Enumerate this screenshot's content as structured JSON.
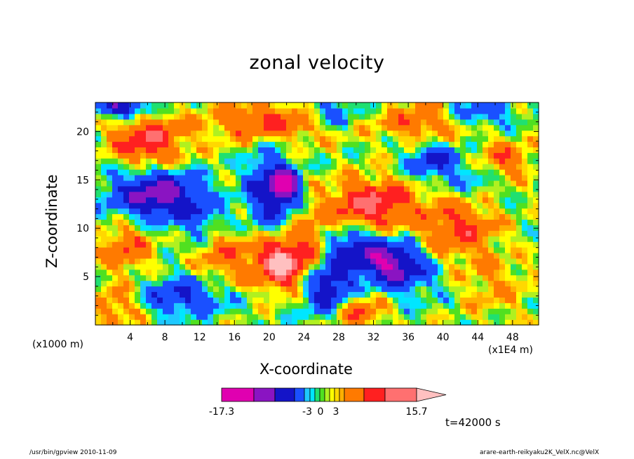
{
  "chart_data": {
    "type": "heatmap",
    "title": "zonal velocity",
    "xlabel": "X-coordinate",
    "ylabel": "Z-coordinate",
    "x_unit_left": "(x1000 m)",
    "x_unit_right": "(x1E4 m)",
    "time_label": "t=42000 s",
    "xlim": [
      0,
      51
    ],
    "ylim": [
      0,
      23
    ],
    "x_ticks": [
      "4",
      "8",
      "12",
      "16",
      "20",
      "24",
      "28",
      "32",
      "36",
      "40",
      "44",
      "48"
    ],
    "y_ticks": [
      "5",
      "10",
      "15",
      "20"
    ],
    "colorbar": {
      "labels": [
        "-17.3",
        "-3",
        "0",
        "3",
        "15.7"
      ],
      "colors": [
        "#e000b0",
        "#8a14c2",
        "#1414c8",
        "#1a50ff",
        "#1ec8ff",
        "#00e6ff",
        "#20e070",
        "#50e020",
        "#b0f020",
        "#ffff00",
        "#ffd800",
        "#ffb000",
        "#ff7a00",
        "#ff2020",
        "#ff7070",
        "#ffc0c0"
      ]
    },
    "field": {
      "min": -17.3,
      "max": 15.7,
      "features": [
        {
          "x": 21.5,
          "z": 6.5,
          "value": 14,
          "rx": 3,
          "rz": 2.5
        },
        {
          "x": 32,
          "z": 12.5,
          "value": 10,
          "rx": 5,
          "rz": 2.5
        },
        {
          "x": 6,
          "z": 19,
          "value": 9,
          "rx": 4,
          "rz": 2.5
        },
        {
          "x": 20,
          "z": 21,
          "value": 7,
          "rx": 7,
          "rz": 2
        },
        {
          "x": 42,
          "z": 10,
          "value": 7,
          "rx": 4,
          "rz": 3
        },
        {
          "x": 38,
          "z": 21,
          "value": 6,
          "rx": 5,
          "rz": 2
        },
        {
          "x": 15,
          "z": 7,
          "value": 5,
          "rx": 3,
          "rz": 3
        },
        {
          "x": 3.5,
          "z": 8,
          "value": 6,
          "rx": 3,
          "rz": 2.5
        },
        {
          "x": 2.5,
          "z": 2,
          "value": 5,
          "rx": 3,
          "rz": 2
        },
        {
          "x": 30,
          "z": 1.5,
          "value": 7,
          "rx": 3,
          "rz": 2
        },
        {
          "x": 25,
          "z": 9,
          "value": 4,
          "rx": 2,
          "rz": 3
        },
        {
          "x": 47,
          "z": 17,
          "value": 6,
          "rx": 3,
          "rz": 2
        },
        {
          "x": 46,
          "z": 4,
          "value": 3,
          "rx": 4,
          "rz": 3
        },
        {
          "x": 20,
          "z": 14,
          "value": -9,
          "rx": 2.5,
          "rz": 4
        },
        {
          "x": 22,
          "z": 14.5,
          "value": -14,
          "rx": 1.5,
          "rz": 1.5
        },
        {
          "x": 7,
          "z": 13.5,
          "value": -12,
          "rx": 5,
          "rz": 2.5
        },
        {
          "x": 27,
          "z": 4,
          "value": -10,
          "rx": 3,
          "rz": 3
        },
        {
          "x": 34,
          "z": 6.5,
          "value": -11,
          "rx": 3,
          "rz": 2
        },
        {
          "x": 30,
          "z": 8,
          "value": -8,
          "rx": 3,
          "rz": 2
        },
        {
          "x": 10,
          "z": 3,
          "value": -7,
          "rx": 5,
          "rz": 2
        },
        {
          "x": 3,
          "z": 22.5,
          "value": -10,
          "rx": 3,
          "rz": 1
        },
        {
          "x": 27,
          "z": 22,
          "value": -6,
          "rx": 3,
          "rz": 1.5
        },
        {
          "x": 39,
          "z": 17,
          "value": -7,
          "rx": 3,
          "rz": 2
        },
        {
          "x": 44,
          "z": 22,
          "value": -6,
          "rx": 4,
          "rz": 1.5
        },
        {
          "x": 36,
          "z": 5,
          "value": -4,
          "rx": 4,
          "rz": 2.5
        },
        {
          "x": 12,
          "z": 11,
          "value": -4,
          "rx": 3,
          "rz": 2
        },
        {
          "x": 44,
          "z": 15,
          "value": -3,
          "rx": 3,
          "rz": 2
        }
      ]
    }
  },
  "footer": {
    "left": "/usr/bin/gpview  2010-11-09",
    "right": "arare-earth-reikyaku2K_VelX.nc@VelX"
  }
}
